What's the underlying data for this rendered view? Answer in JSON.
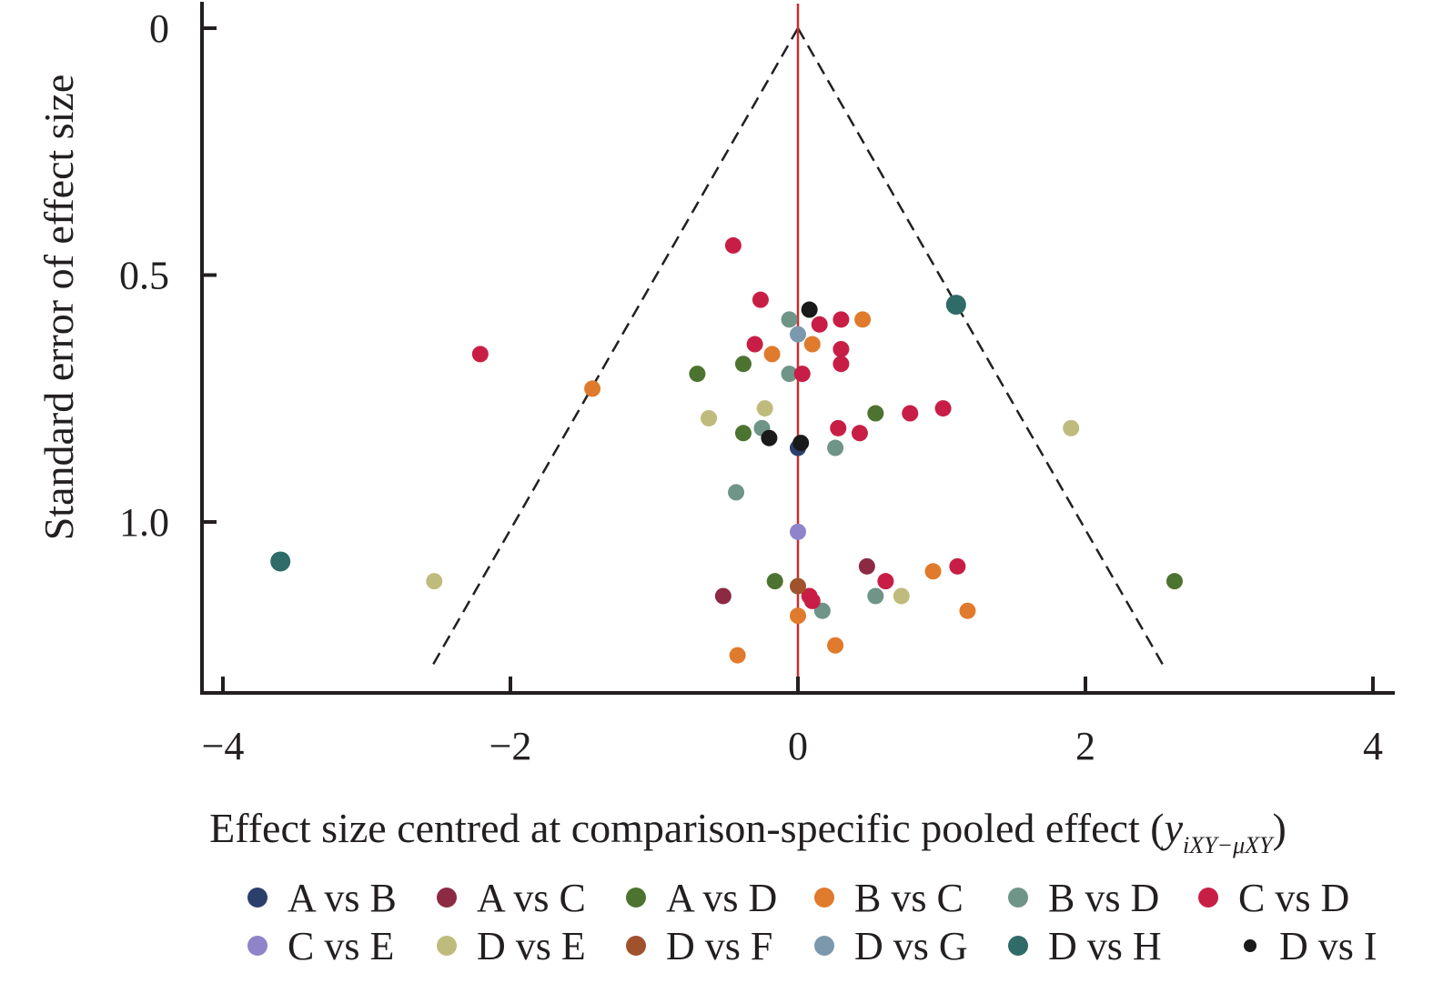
{
  "chart_data": {
    "type": "scatter",
    "title": "",
    "xlabel": "Effect size centred at comparison-specific pooled effect (",
    "xlabel_math": "y",
    "xlabel_subscript": "iXY−μXY",
    "xlabel_close": ")",
    "ylabel": "Standard error of effect size",
    "xlim": [
      -4,
      4
    ],
    "ylim": [
      0,
      1.35
    ],
    "y_inverted": true,
    "x_ticks": [
      -4,
      -2,
      0,
      2,
      4
    ],
    "x_tick_labels": [
      "−4",
      "−2",
      "0",
      "2",
      "4"
    ],
    "y_ticks": [
      0,
      0.5,
      1.0
    ],
    "y_tick_labels": [
      "0",
      "0.5",
      "1.0"
    ],
    "grid": false,
    "reference_line": {
      "x": 0,
      "color": "#cc2b2b"
    },
    "funnel": {
      "apex": [
        0,
        0
      ],
      "left_end": [
        -2.56,
        1.3
      ],
      "right_end": [
        2.56,
        1.3
      ],
      "style": "dashed"
    },
    "legend_position": "bottom",
    "series": [
      {
        "name": "A vs B",
        "color": "#2c3e6b",
        "points": [
          [
            0.0,
            0.85
          ]
        ]
      },
      {
        "name": "A vs C",
        "color": "#8c2a44",
        "points": [
          [
            0.48,
            1.09
          ],
          [
            -0.52,
            1.15
          ]
        ]
      },
      {
        "name": "A vs D",
        "color": "#4d7330",
        "points": [
          [
            -0.7,
            0.7
          ],
          [
            -0.38,
            0.68
          ],
          [
            0.54,
            0.78
          ],
          [
            -0.38,
            0.82
          ],
          [
            -0.16,
            1.12
          ],
          [
            2.62,
            1.12
          ]
        ]
      },
      {
        "name": "B vs C",
        "color": "#e07a2c",
        "points": [
          [
            0.45,
            0.59
          ],
          [
            0.1,
            0.64
          ],
          [
            -0.18,
            0.66
          ],
          [
            -1.43,
            0.73
          ],
          [
            0.94,
            1.1
          ],
          [
            1.18,
            1.18
          ],
          [
            0.0,
            1.19
          ],
          [
            0.26,
            1.25
          ],
          [
            -0.42,
            1.27
          ]
        ]
      },
      {
        "name": "B vs D",
        "color": "#6f9488",
        "points": [
          [
            -0.06,
            0.59
          ],
          [
            -0.06,
            0.7
          ],
          [
            -0.25,
            0.81
          ],
          [
            0.26,
            0.85
          ],
          [
            -0.43,
            0.94
          ],
          [
            0.54,
            1.15
          ],
          [
            0.17,
            1.18
          ]
        ]
      },
      {
        "name": "C vs D",
        "color": "#c81e45",
        "points": [
          [
            -0.45,
            0.44
          ],
          [
            -0.26,
            0.55
          ],
          [
            0.15,
            0.6
          ],
          [
            0.3,
            0.59
          ],
          [
            -0.3,
            0.64
          ],
          [
            0.3,
            0.65
          ],
          [
            0.3,
            0.68
          ],
          [
            0.03,
            0.7
          ],
          [
            -2.21,
            0.66
          ],
          [
            1.01,
            0.77
          ],
          [
            0.78,
            0.78
          ],
          [
            0.28,
            0.81
          ],
          [
            0.43,
            0.82
          ],
          [
            0.61,
            1.12
          ],
          [
            1.11,
            1.09
          ],
          [
            0.08,
            1.15
          ],
          [
            0.1,
            1.16
          ]
        ]
      },
      {
        "name": "C vs E",
        "color": "#8f84c9",
        "points": [
          [
            0.0,
            1.02
          ]
        ]
      },
      {
        "name": "D vs E",
        "color": "#bfbb7c",
        "points": [
          [
            -0.23,
            0.77
          ],
          [
            -0.62,
            0.79
          ],
          [
            1.9,
            0.81
          ],
          [
            -2.53,
            1.12
          ],
          [
            0.72,
            1.15
          ]
        ]
      },
      {
        "name": "D vs F",
        "color": "#a0522d",
        "points": [
          [
            0.0,
            1.13
          ]
        ]
      },
      {
        "name": "D vs G",
        "color": "#7b98ad",
        "points": [
          [
            0.0,
            0.62
          ]
        ]
      },
      {
        "name": "D vs H",
        "color": "#2f6b68",
        "points": [
          [
            1.1,
            0.56
          ],
          [
            -3.6,
            1.08
          ]
        ]
      },
      {
        "name": "D vs I",
        "color": "#1a1a1a",
        "points": [
          [
            0.08,
            0.57
          ],
          [
            -0.2,
            0.83
          ],
          [
            0.02,
            0.84
          ]
        ]
      }
    ]
  }
}
